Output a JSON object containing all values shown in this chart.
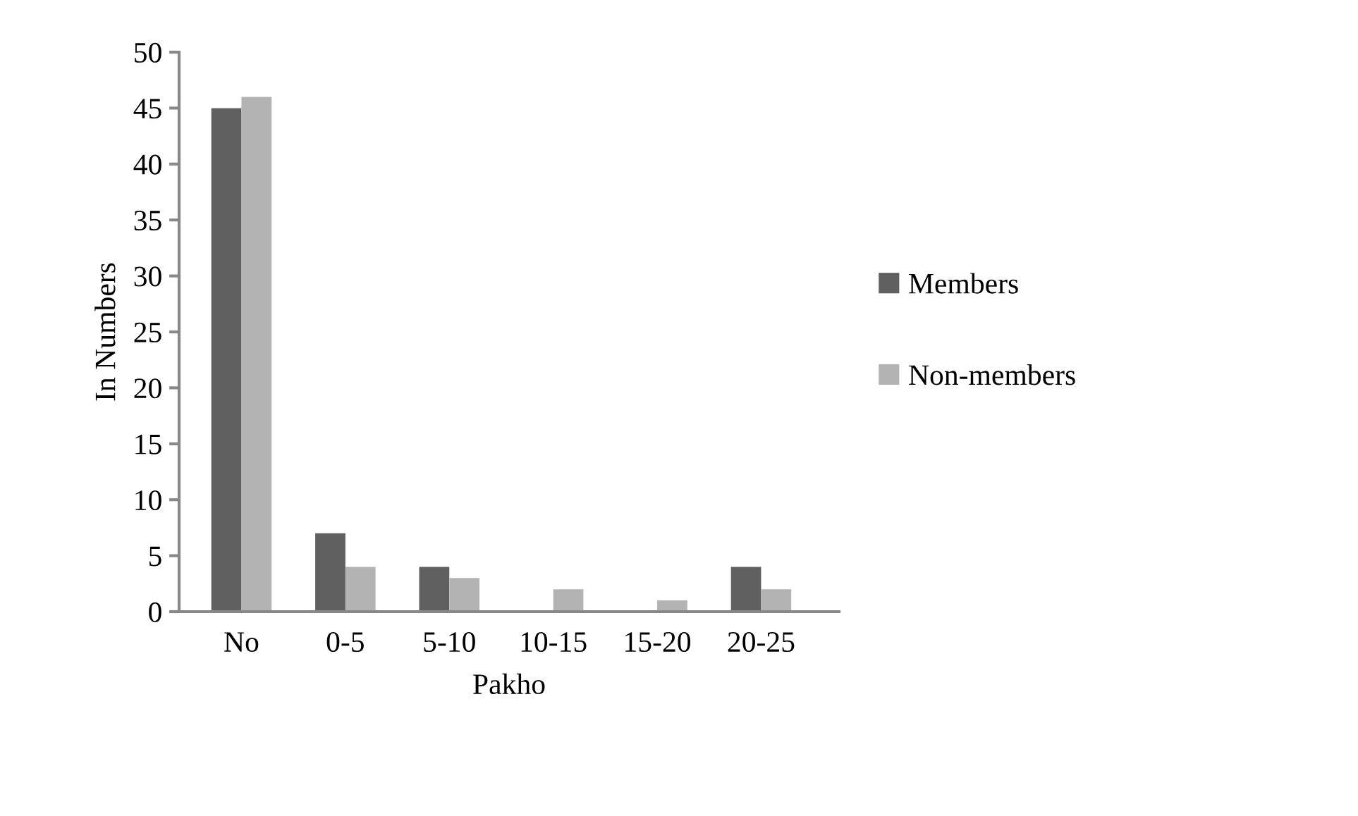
{
  "chart_data": {
    "type": "bar",
    "xlabel": "Pakho",
    "ylabel": "In Numbers",
    "categories": [
      "No",
      "0-5",
      "5-10",
      "10-15",
      "15-20",
      "20-25"
    ],
    "series": [
      {
        "name": "Members",
        "color": "#606060",
        "values": [
          45,
          7,
          4,
          0,
          0,
          4
        ]
      },
      {
        "name": "Non-members",
        "color": "#b3b3b3",
        "values": [
          46,
          4,
          3,
          2,
          1,
          2
        ]
      }
    ],
    "ylim": [
      0,
      50
    ],
    "yticks": [
      0,
      5,
      10,
      15,
      20,
      25,
      30,
      35,
      40,
      45,
      50
    ],
    "grid": false,
    "legend": "right"
  }
}
